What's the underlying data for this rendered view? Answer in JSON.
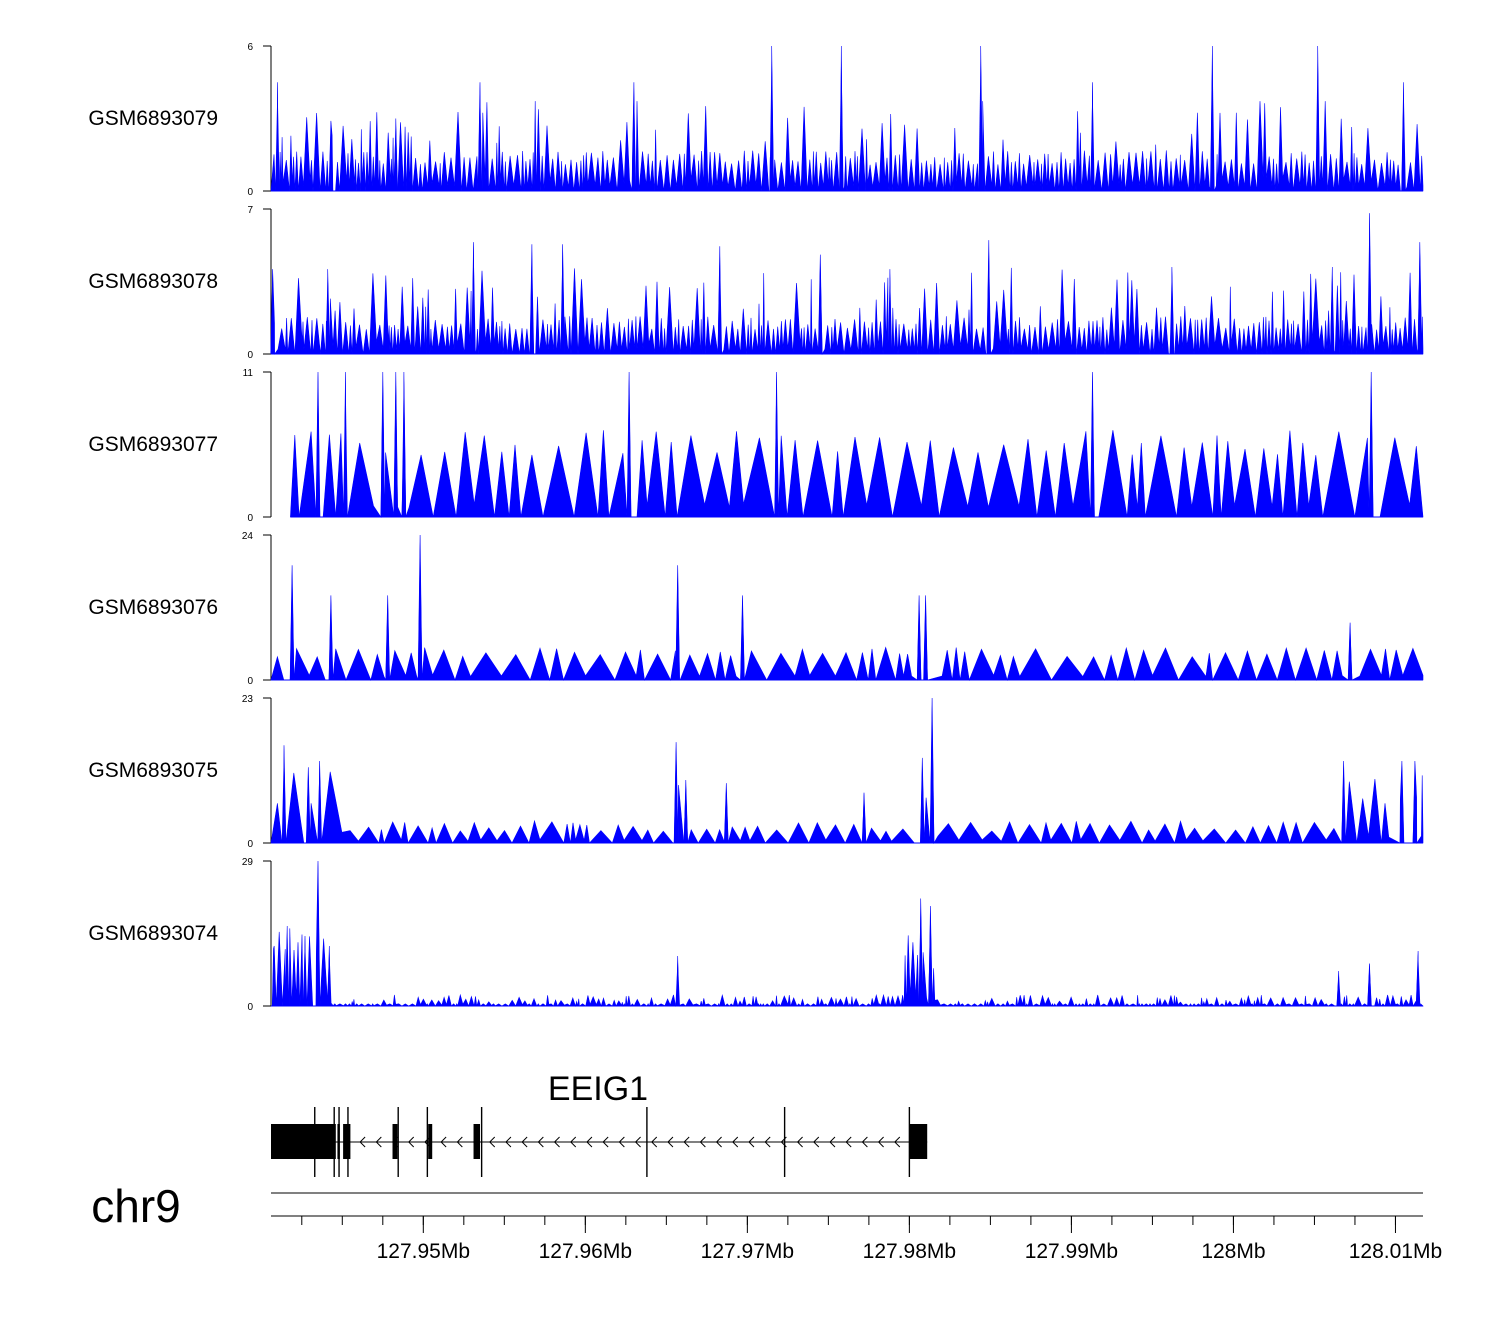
{
  "chart_data": {
    "type": "area",
    "title": "",
    "chromosome": "chr9",
    "xlim": [
      127.9406,
      128.0117
    ],
    "x_unit": "Mb",
    "x_ticks": [
      {
        "value": 127.95,
        "label": "127.95Mb"
      },
      {
        "value": 127.96,
        "label": "127.96Mb"
      },
      {
        "value": 127.97,
        "label": "127.97Mb"
      },
      {
        "value": 127.98,
        "label": "127.98Mb"
      },
      {
        "value": 127.99,
        "label": "127.99Mb"
      },
      {
        "value": 128.0,
        "label": "128Mb"
      },
      {
        "value": 128.01,
        "label": "128.01Mb"
      }
    ],
    "minor_tick_step": 0.0025,
    "fill_color": "#0000ff",
    "tracks": [
      {
        "name": "GSM6893079",
        "ylim": [
          0,
          6
        ],
        "y_ticks": [
          "6",
          "0"
        ],
        "seed": 79,
        "profile": "sparse",
        "start": 127.9406,
        "base": 1.2,
        "peaks": [
          [
            127.941,
            4.5
          ],
          [
            127.9443,
            2.9
          ],
          [
            127.9483,
            3.0
          ],
          [
            127.9535,
            4.5
          ],
          [
            127.963,
            4.5
          ],
          [
            127.9715,
            6.0
          ],
          [
            127.9758,
            6.0
          ],
          [
            127.9844,
            6.0
          ],
          [
            127.9913,
            4.5
          ],
          [
            127.9987,
            6.0
          ],
          [
            128.0052,
            6.0
          ],
          [
            128.0105,
            4.5
          ]
        ]
      },
      {
        "name": "GSM6893078",
        "ylim": [
          0,
          7
        ],
        "y_ticks": [
          "7",
          "0"
        ],
        "seed": 78,
        "profile": "sparse",
        "start": 127.9406,
        "base": 1.3,
        "peaks": [
          [
            127.9407,
            4.1
          ],
          [
            127.9441,
            4.1
          ],
          [
            127.9531,
            5.4
          ],
          [
            127.9567,
            5.3
          ],
          [
            127.9586,
            5.3
          ],
          [
            127.9683,
            5.2
          ],
          [
            127.9745,
            4.8
          ],
          [
            127.9788,
            4.1
          ],
          [
            127.9849,
            5.5
          ],
          [
            127.9962,
            4.2
          ],
          [
            128.0061,
            4.2
          ],
          [
            128.0084,
            6.8
          ],
          [
            128.0115,
            5.4
          ]
        ]
      },
      {
        "name": "GSM6893077",
        "ylim": [
          0,
          11
        ],
        "y_ticks": [
          "11",
          "0"
        ],
        "seed": 77,
        "profile": "triangle",
        "start": 127.9418,
        "base": 5.5,
        "peaks": [
          [
            127.9435,
            11.0
          ],
          [
            127.9452,
            11.0
          ],
          [
            127.9475,
            11.0
          ],
          [
            127.9483,
            11.0
          ],
          [
            127.9488,
            11.0
          ],
          [
            127.9627,
            11.0
          ],
          [
            127.9718,
            11.0
          ],
          [
            127.9913,
            11.0
          ],
          [
            128.0085,
            11.0
          ]
        ]
      },
      {
        "name": "GSM6893076",
        "ylim": [
          0,
          24
        ],
        "y_ticks": [
          "24",
          "0"
        ],
        "seed": 76,
        "profile": "triangle",
        "start": 127.9406,
        "base": 4.5,
        "peaks": [
          [
            127.9419,
            19.0
          ],
          [
            127.9443,
            14.0
          ],
          [
            127.9478,
            14.0
          ],
          [
            127.9498,
            24.0
          ],
          [
            127.9657,
            19.0
          ],
          [
            127.9697,
            14.0
          ],
          [
            127.9806,
            14.0
          ],
          [
            127.981,
            14.0
          ],
          [
            128.0072,
            9.5
          ]
        ]
      },
      {
        "name": "GSM6893075",
        "ylim": [
          0,
          23
        ],
        "y_ticks": [
          "23",
          "0"
        ],
        "seed": 75,
        "profile": "mixed",
        "start": 127.9406,
        "base": 3.0,
        "peaks": [
          [
            127.9414,
            15.5
          ],
          [
            127.9429,
            12.0
          ],
          [
            127.9436,
            13.0
          ],
          [
            127.9656,
            16.0
          ],
          [
            127.9662,
            10.0
          ],
          [
            127.9687,
            9.5
          ],
          [
            127.9772,
            8.0
          ],
          [
            127.9808,
            13.5
          ],
          [
            127.9814,
            23.0
          ],
          [
            128.0068,
            13.0
          ],
          [
            128.0104,
            13.0
          ],
          [
            128.0112,
            13.0
          ]
        ]
      },
      {
        "name": "GSM6893074",
        "ylim": [
          0,
          29
        ],
        "y_ticks": [
          "29",
          "0"
        ],
        "seed": 74,
        "profile": "dense",
        "start": 127.9406,
        "base": 1.5,
        "peaks": [
          [
            127.9408,
            12.0
          ],
          [
            127.9416,
            16.0
          ],
          [
            127.9427,
            14.0
          ],
          [
            127.9435,
            29.0
          ],
          [
            127.9442,
            12.0
          ],
          [
            127.9657,
            10.0
          ],
          [
            127.9807,
            21.5
          ],
          [
            127.9813,
            20.0
          ],
          [
            128.0065,
            7.0
          ],
          [
            128.0084,
            8.5
          ],
          [
            128.0114,
            11.0
          ]
        ]
      }
    ],
    "gene": {
      "symbol": "EEIG1",
      "strand": "-",
      "start": 127.9406,
      "end": 127.9811,
      "exons": [
        {
          "start": 127.9406,
          "end": 127.9446,
          "kind": "utr"
        },
        {
          "start": 127.9447,
          "end": 127.94485,
          "kind": "utr"
        },
        {
          "start": 127.94505,
          "end": 127.9455,
          "kind": "utr"
        },
        {
          "start": 127.9481,
          "end": 127.9484,
          "kind": "utr"
        },
        {
          "start": 127.9503,
          "end": 127.95055,
          "kind": "utr"
        },
        {
          "start": 127.9531,
          "end": 127.9535,
          "kind": "utr"
        },
        {
          "start": 127.98,
          "end": 127.9811,
          "kind": "utr"
        }
      ],
      "marks": [
        127.9433,
        127.9445,
        127.9448,
        127.94535,
        127.94845,
        127.95025,
        127.9536,
        127.9638,
        127.9723,
        127.98
      ]
    }
  }
}
